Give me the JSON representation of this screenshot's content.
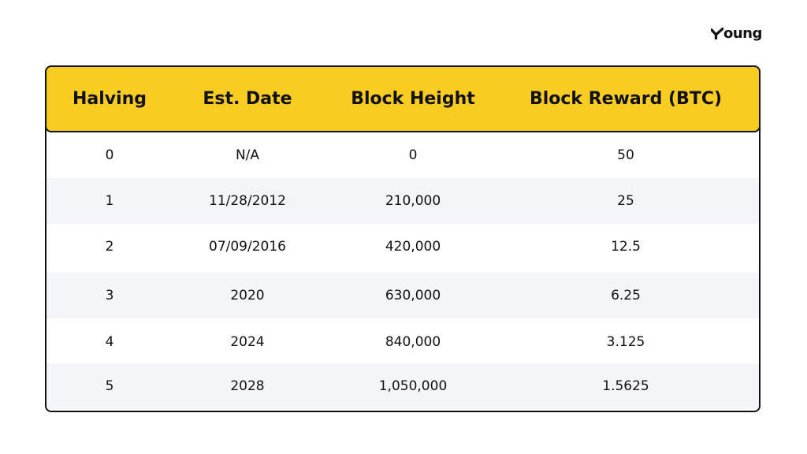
{
  "brand": {
    "logo_text": "oung",
    "logo_mark_icon": "checkmark-y-icon"
  },
  "table": {
    "headers": [
      "Halving",
      "Est. Date",
      "Block Height",
      "Block Reward (BTC)"
    ],
    "rows": [
      [
        "0",
        "N/A",
        "0",
        "50"
      ],
      [
        "1",
        "11/28/2012",
        "210,000",
        "25"
      ],
      [
        "2",
        "07/09/2016",
        "420,000",
        "12.5"
      ],
      [
        "3",
        "2020",
        "630,000",
        "6.25"
      ],
      [
        "4",
        "2024",
        "840,000",
        "3.125"
      ],
      [
        "5",
        "2028",
        "1,050,000",
        "1.5625"
      ]
    ]
  },
  "colors": {
    "header_bg": "#F9CC22",
    "alt_row_bg": "#F4F5F9",
    "border": "#111111"
  }
}
